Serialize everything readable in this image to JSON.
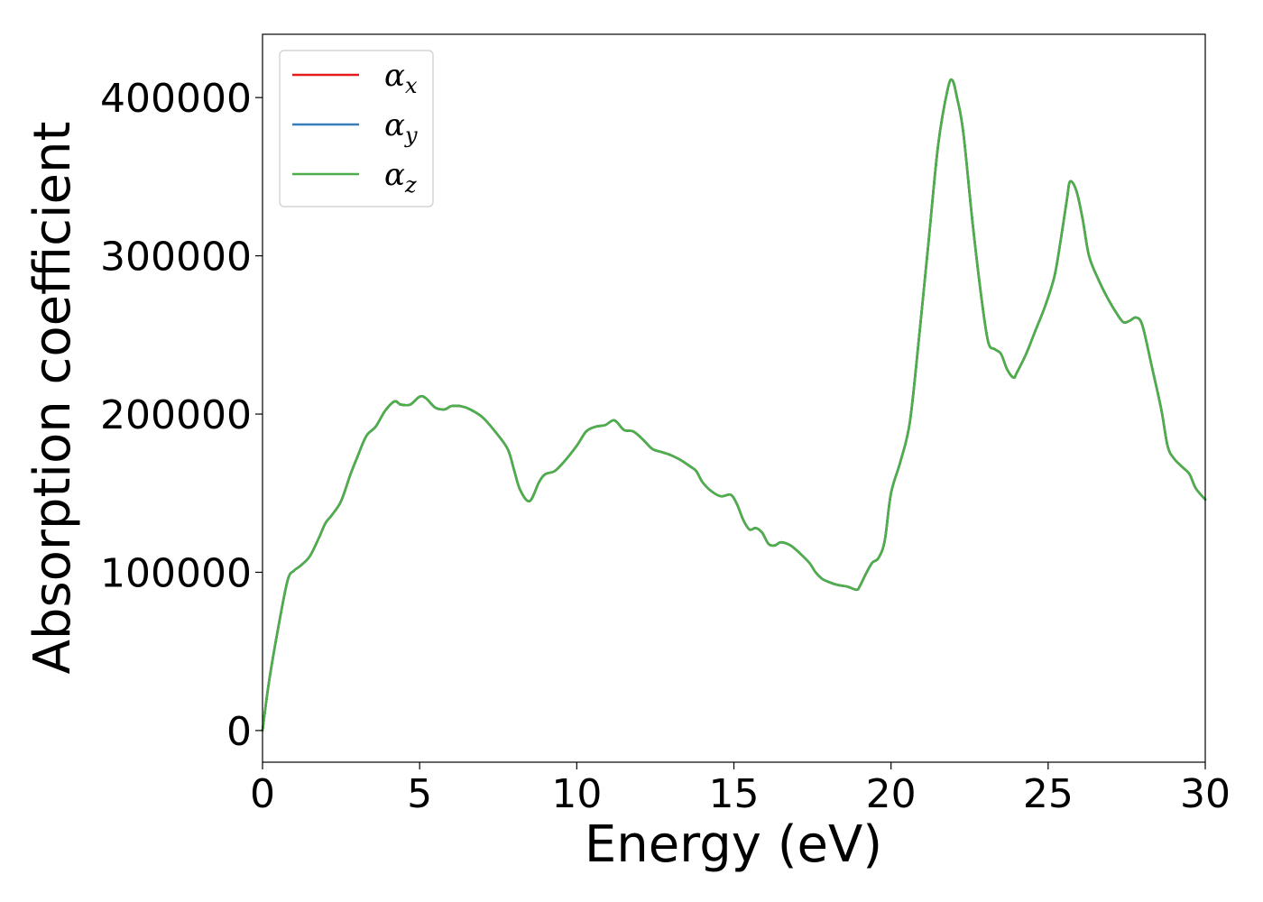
{
  "chart_data": {
    "type": "line",
    "title": "",
    "xlabel": "Energy (eV)",
    "ylabel": "Absorption coefficient",
    "xlim": [
      0,
      30
    ],
    "ylim": [
      -20000,
      440000
    ],
    "x_ticks": [
      0,
      5,
      10,
      15,
      20,
      25,
      30
    ],
    "x_tick_labels": [
      "0",
      "5",
      "10",
      "15",
      "20",
      "25",
      "30"
    ],
    "y_ticks": [
      0,
      100000,
      200000,
      300000,
      400000
    ],
    "y_tick_labels": [
      "0",
      "100000",
      "200000",
      "300000",
      "400000"
    ],
    "grid": false,
    "legend_position": "top-left",
    "legend": [
      {
        "symbol": "α",
        "sub": "x",
        "color": "#e41a1c"
      },
      {
        "symbol": "α",
        "sub": "y",
        "color": "#377eb8"
      },
      {
        "symbol": "α",
        "sub": "z",
        "color": "#4daf4a"
      }
    ],
    "x": [
      0,
      0.2,
      0.5,
      0.8,
      1.0,
      1.2,
      1.5,
      1.8,
      2.0,
      2.2,
      2.5,
      2.8,
      3.0,
      3.3,
      3.6,
      3.9,
      4.2,
      4.4,
      4.7,
      5.0,
      5.2,
      5.5,
      5.8,
      6.0,
      6.3,
      6.6,
      7.0,
      7.4,
      7.8,
      8.0,
      8.2,
      8.5,
      8.8,
      9.0,
      9.3,
      9.6,
      10.0,
      10.3,
      10.6,
      10.9,
      11.2,
      11.5,
      11.8,
      12.1,
      12.4,
      12.7,
      13.0,
      13.3,
      13.6,
      13.8,
      14.0,
      14.3,
      14.6,
      14.9,
      15.1,
      15.3,
      15.5,
      15.7,
      15.9,
      16.1,
      16.3,
      16.5,
      16.8,
      17.1,
      17.4,
      17.6,
      17.8,
      18.0,
      18.3,
      18.6,
      18.9,
      19.0,
      19.2,
      19.4,
      19.6,
      19.8,
      20.0,
      20.3,
      20.6,
      20.9,
      21.2,
      21.5,
      21.8,
      21.95,
      22.1,
      22.3,
      22.6,
      22.9,
      23.1,
      23.3,
      23.5,
      23.7,
      23.9,
      24.0,
      24.3,
      24.6,
      24.9,
      25.2,
      25.4,
      25.6,
      25.7,
      25.9,
      26.1,
      26.3,
      26.6,
      26.9,
      27.2,
      27.4,
      27.6,
      27.8,
      28.0,
      28.3,
      28.6,
      28.8,
      29.0,
      29.3,
      29.5,
      29.7,
      30.0
    ],
    "series": [
      {
        "name": "αx",
        "color": "#e41a1c",
        "y": [
          0,
          30000,
          65000,
          95000,
          101000,
          104000,
          110000,
          122000,
          131000,
          136000,
          145000,
          162000,
          172000,
          186000,
          192000,
          202000,
          208000,
          206000,
          206000,
          211000,
          210000,
          204000,
          203000,
          205000,
          205000,
          203000,
          198000,
          189000,
          178000,
          165000,
          152000,
          145000,
          157000,
          162000,
          164000,
          170000,
          180000,
          189000,
          192000,
          193000,
          196000,
          190000,
          189000,
          184000,
          178000,
          176000,
          174000,
          171000,
          167000,
          164000,
          157000,
          151000,
          148000,
          149000,
          143000,
          133000,
          127000,
          128000,
          125000,
          118000,
          117000,
          119000,
          117000,
          112000,
          106000,
          100000,
          96000,
          94000,
          92000,
          91000,
          89000,
          91000,
          99000,
          106000,
          109000,
          120000,
          150000,
          170000,
          195000,
          250000,
          310000,
          370000,
          405000,
          411000,
          400000,
          378000,
          320000,
          270000,
          245000,
          241000,
          238000,
          228000,
          223000,
          226000,
          238000,
          253000,
          268000,
          287000,
          310000,
          336000,
          347000,
          341000,
          323000,
          300000,
          285000,
          273000,
          263000,
          258000,
          259000,
          261000,
          256000,
          230000,
          203000,
          180000,
          172000,
          166000,
          162000,
          153000,
          146000
        ]
      },
      {
        "name": "αy",
        "color": "#377eb8",
        "y": [
          0,
          30000,
          65000,
          95000,
          101000,
          104000,
          110000,
          122000,
          131000,
          136000,
          145000,
          162000,
          172000,
          186000,
          192000,
          202000,
          208000,
          206000,
          206000,
          211000,
          210000,
          204000,
          203000,
          205000,
          205000,
          203000,
          198000,
          189000,
          178000,
          165000,
          152000,
          145000,
          157000,
          162000,
          164000,
          170000,
          180000,
          189000,
          192000,
          193000,
          196000,
          190000,
          189000,
          184000,
          178000,
          176000,
          174000,
          171000,
          167000,
          164000,
          157000,
          151000,
          148000,
          149000,
          143000,
          133000,
          127000,
          128000,
          125000,
          118000,
          117000,
          119000,
          117000,
          112000,
          106000,
          100000,
          96000,
          94000,
          92000,
          91000,
          89000,
          91000,
          99000,
          106000,
          109000,
          120000,
          150000,
          170000,
          195000,
          250000,
          310000,
          370000,
          405000,
          411000,
          400000,
          378000,
          320000,
          270000,
          245000,
          241000,
          238000,
          228000,
          223000,
          226000,
          238000,
          253000,
          268000,
          287000,
          310000,
          336000,
          347000,
          341000,
          323000,
          300000,
          285000,
          273000,
          263000,
          258000,
          259000,
          261000,
          256000,
          230000,
          203000,
          180000,
          172000,
          166000,
          162000,
          153000,
          146000
        ]
      },
      {
        "name": "αz",
        "color": "#4daf4a",
        "y": [
          0,
          30000,
          65000,
          95000,
          101000,
          104000,
          110000,
          122000,
          131000,
          136000,
          145000,
          162000,
          172000,
          186000,
          192000,
          202000,
          208000,
          206000,
          206000,
          211000,
          210000,
          204000,
          203000,
          205000,
          205000,
          203000,
          198000,
          189000,
          178000,
          165000,
          152000,
          145000,
          157000,
          162000,
          164000,
          170000,
          180000,
          189000,
          192000,
          193000,
          196000,
          190000,
          189000,
          184000,
          178000,
          176000,
          174000,
          171000,
          167000,
          164000,
          157000,
          151000,
          148000,
          149000,
          143000,
          133000,
          127000,
          128000,
          125000,
          118000,
          117000,
          119000,
          117000,
          112000,
          106000,
          100000,
          96000,
          94000,
          92000,
          91000,
          89000,
          91000,
          99000,
          106000,
          109000,
          120000,
          150000,
          170000,
          195000,
          250000,
          310000,
          370000,
          405000,
          411000,
          400000,
          378000,
          320000,
          270000,
          245000,
          241000,
          238000,
          228000,
          223000,
          226000,
          238000,
          253000,
          268000,
          287000,
          310000,
          336000,
          347000,
          341000,
          323000,
          300000,
          285000,
          273000,
          263000,
          258000,
          259000,
          261000,
          256000,
          230000,
          203000,
          180000,
          172000,
          166000,
          162000,
          153000,
          146000
        ]
      }
    ]
  }
}
